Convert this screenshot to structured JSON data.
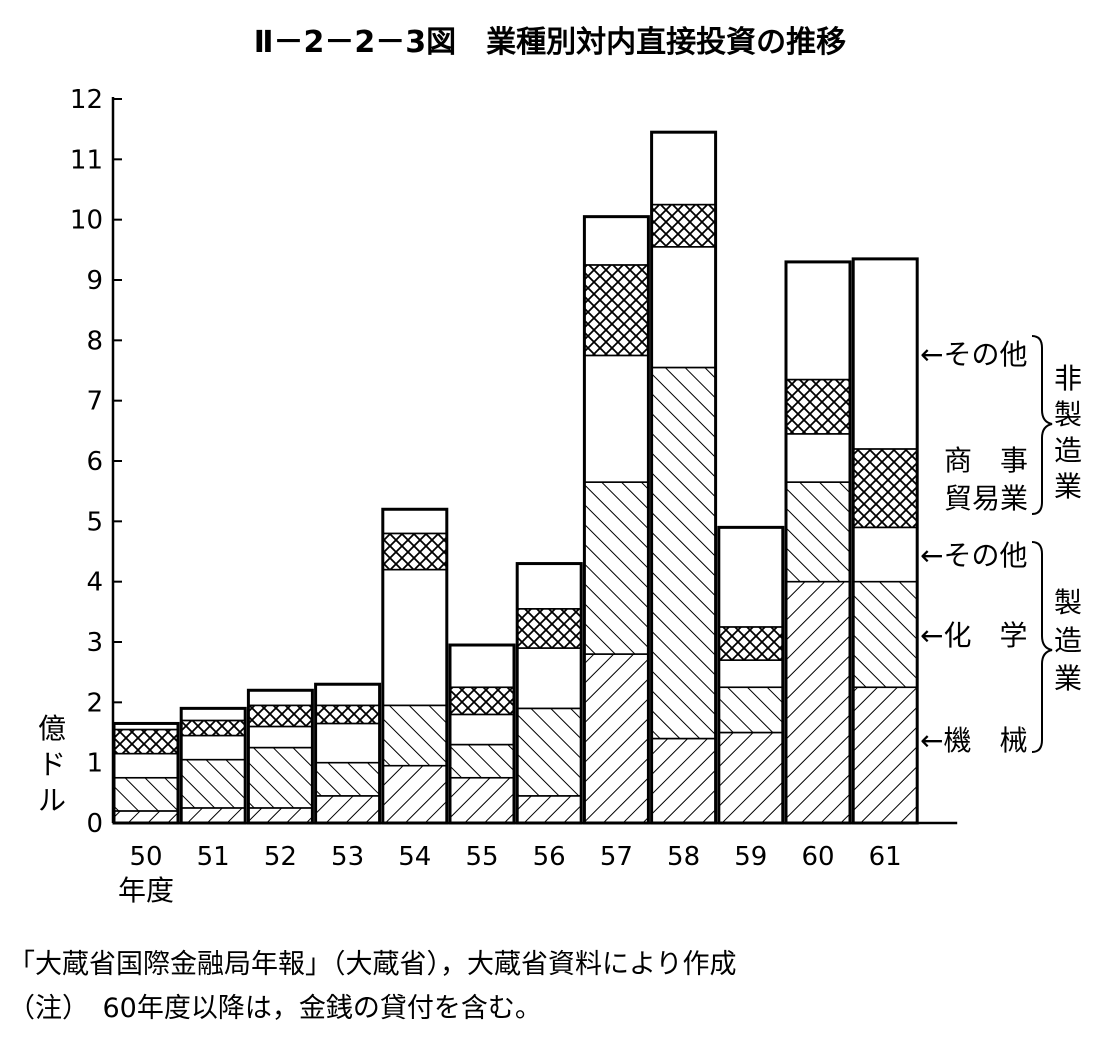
{
  "title": "Ⅱ－2－2－3図　業種別対内直接投資の推移",
  "chart_data": {
    "type": "bar",
    "stacked": true,
    "title": "Ⅱ－2－2－3図　業種別対内直接投資の推移",
    "ylabel": "億ドル",
    "xlabel": "年度",
    "ylim": [
      0,
      12
    ],
    "yticks": [
      "0",
      "1",
      "2",
      "3",
      "4",
      "5",
      "6",
      "7",
      "8",
      "9",
      "10",
      "11",
      "12"
    ],
    "categories": [
      "50",
      "51",
      "52",
      "53",
      "54",
      "55",
      "56",
      "57",
      "58",
      "59",
      "60",
      "61"
    ],
    "series": [
      {
        "name": "機械",
        "pattern": "hatch-forward",
        "values": [
          0.2,
          0.25,
          0.25,
          0.45,
          0.95,
          0.75,
          0.45,
          2.8,
          1.4,
          1.5,
          4.0,
          2.25
        ]
      },
      {
        "name": "化学",
        "pattern": "hatch-back",
        "values": [
          0.55,
          0.8,
          1.0,
          0.55,
          1.0,
          0.55,
          1.45,
          2.85,
          6.15,
          0.75,
          1.65,
          1.75
        ]
      },
      {
        "name": "その他",
        "pattern": "plain",
        "values": [
          0.4,
          0.4,
          0.35,
          0.65,
          2.25,
          0.5,
          1.0,
          2.1,
          2.0,
          0.45,
          0.8,
          0.9
        ]
      },
      {
        "name": "商事貿易業",
        "pattern": "crosshatch",
        "values": [
          0.4,
          0.25,
          0.35,
          0.3,
          0.6,
          0.45,
          0.65,
          1.5,
          0.7,
          0.55,
          0.9,
          1.3
        ]
      },
      {
        "name": "その他",
        "pattern": "plain",
        "values": [
          0.1,
          0.2,
          0.25,
          0.35,
          0.4,
          0.7,
          0.75,
          0.8,
          1.2,
          1.65,
          1.95,
          3.15
        ]
      }
    ],
    "legend": {
      "position": "right",
      "groups": [
        {
          "label": "非製造業",
          "items": [
            "その他",
            "商事貿易業"
          ]
        },
        {
          "label": "製造業",
          "items": [
            "その他",
            "化学",
            "機械"
          ]
        }
      ],
      "items": {
        "nonmfg_other": "←その他",
        "trade_line1": "商　事",
        "trade_line2": "貿易業",
        "mfg_other": "←その他",
        "chemical": "←化　学",
        "machinery": "←機　械"
      },
      "group_nonmfg": [
        "非",
        "製",
        "造",
        "業"
      ],
      "group_mfg": [
        "製",
        "造",
        "業"
      ]
    }
  },
  "ylabel_chars": [
    "億",
    "ド",
    "ル"
  ],
  "xlabel_text": "年度",
  "notes": {
    "source": "「大蔵省国際金融局年報」（大蔵省），大蔵省資料により作成",
    "note": "（注）　60年度以降は，金銭の貸付を含む。"
  }
}
